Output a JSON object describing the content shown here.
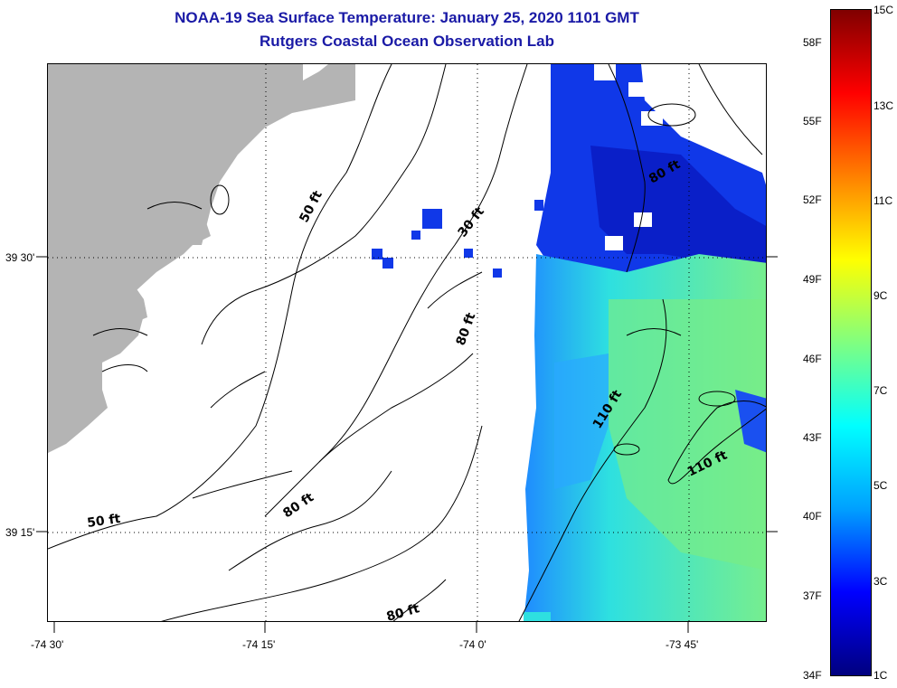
{
  "title": {
    "line1": "NOAA-19 Sea Surface Temperature:  January 25, 2020 1101 GMT",
    "line2": "Rutgers Coastal Ocean Observation Lab"
  },
  "map": {
    "lat_labels": [
      "39 30'",
      "39 15'"
    ],
    "lon_labels": [
      "-74 30'",
      "-74 15'",
      "-74 0'",
      "-73 45'"
    ],
    "contour_labels": [
      "50 ft",
      "30 ft",
      "80 ft",
      "80 ft",
      "110 ft",
      "110 ft",
      "50 ft",
      "80 ft",
      "80 ft"
    ],
    "land_color": "#b4b4b4",
    "gridlines": "dotted"
  },
  "colorbar": {
    "fahrenheit_labels": [
      "58F",
      "55F",
      "52F",
      "49F",
      "46F",
      "43F",
      "40F",
      "37F",
      "34F"
    ],
    "celsius_labels": [
      "15C",
      "13C",
      "11C",
      "9C",
      "7C",
      "5C",
      "3C",
      "1C"
    ],
    "range_c": [
      1,
      15
    ],
    "colors": [
      "#00007f",
      "#0000ff",
      "#00a0ff",
      "#00ffff",
      "#80ff80",
      "#ffff00",
      "#ff8000",
      "#ff0000",
      "#800000"
    ]
  }
}
